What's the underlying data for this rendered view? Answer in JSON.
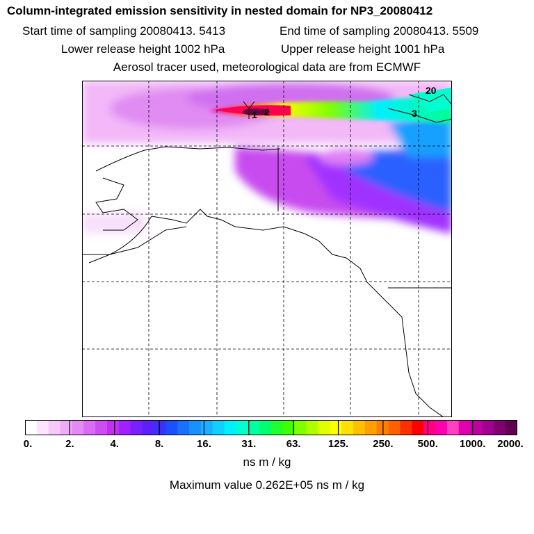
{
  "header": {
    "title": "Column-integrated emission sensitivity in nested domain for NP3_20080412",
    "start_time": "Start time of sampling 20080413.  5413",
    "end_time": "End time of sampling 20080413.  5509",
    "lower_release": "Lower release height 1002 hPa",
    "upper_release": "Upper release height 1001 hPa",
    "tracer_note": "Aerosol tracer used, meteorological data are from ECMWF"
  },
  "map": {
    "labels": [
      "1",
      "2",
      "3",
      "20"
    ]
  },
  "colorbar": {
    "ticks": [
      "0.",
      "2.",
      "4.",
      "8.",
      "16.",
      "31.",
      "63.",
      "125.",
      "250.",
      "500.",
      "1000.",
      "2000."
    ],
    "colors": [
      "#ffffff",
      "#ffe4ff",
      "#f6c8fb",
      "#efaaf8",
      "#e38af5",
      "#d86cf2",
      "#cc4ef0",
      "#c030ee",
      "#a020ff",
      "#7a20ff",
      "#5a20ff",
      "#3a30ff",
      "#1a50ff",
      "#1870ff",
      "#1890ff",
      "#18b0ff",
      "#10d0ff",
      "#00f0ff",
      "#00ffd0",
      "#00ffa0",
      "#00ff70",
      "#20ff30",
      "#40ff00",
      "#80ff00",
      "#b0ff00",
      "#e0ff00",
      "#ffff00",
      "#ffe000",
      "#ffc000",
      "#ffa000",
      "#ff8000",
      "#ff6000",
      "#ff3000",
      "#ff0000",
      "#ff0080",
      "#ff00b0",
      "#ff40c0",
      "#e000b0",
      "#c000a0",
      "#a00090",
      "#800070",
      "#600050"
    ],
    "units": "ns m / kg",
    "maximum": "Maximum value  0.262E+05 ns m / kg"
  }
}
